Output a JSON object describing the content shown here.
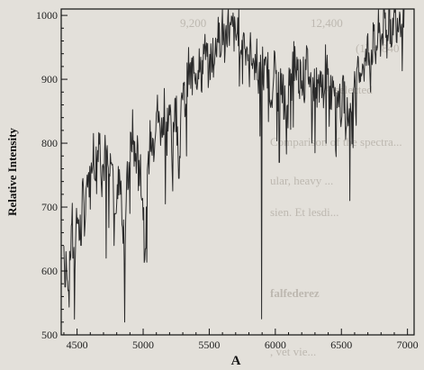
{
  "chart_data": {
    "type": "line",
    "title": "",
    "xlabel": "A",
    "ylabel": "Relative Intensity",
    "xlim": [
      4380,
      7050
    ],
    "ylim": [
      500,
      1010
    ],
    "x_ticks": [
      4500,
      5000,
      5500,
      6000,
      6500,
      7000
    ],
    "y_ticks": [
      500,
      600,
      700,
      800,
      900,
      1000
    ],
    "grid": false,
    "series": [
      {
        "color": "#2a2a2a",
        "points": [
          [
            4400,
            640
          ],
          [
            4420,
            620
          ],
          [
            4440,
            575
          ],
          [
            4460,
            690
          ],
          [
            4480,
            600
          ],
          [
            4500,
            700
          ],
          [
            4520,
            650
          ],
          [
            4540,
            720
          ],
          [
            4560,
            680
          ],
          [
            4580,
            760
          ],
          [
            4600,
            730
          ],
          [
            4620,
            800
          ],
          [
            4640,
            760
          ],
          [
            4660,
            830
          ],
          [
            4680,
            780
          ],
          [
            4700,
            760
          ],
          [
            4720,
            800
          ],
          [
            4740,
            740
          ],
          [
            4760,
            780
          ],
          [
            4780,
            720
          ],
          [
            4800,
            700
          ],
          [
            4820,
            760
          ],
          [
            4840,
            700
          ],
          [
            4860,
            640
          ],
          [
            4880,
            740
          ],
          [
            4900,
            780
          ],
          [
            4920,
            820
          ],
          [
            4940,
            770
          ],
          [
            4960,
            800
          ],
          [
            4980,
            760
          ],
          [
            5000,
            700
          ],
          [
            5020,
            640
          ],
          [
            5040,
            780
          ],
          [
            5060,
            820
          ],
          [
            5080,
            800
          ],
          [
            5100,
            860
          ],
          [
            5120,
            830
          ],
          [
            5140,
            820
          ],
          [
            5160,
            870
          ],
          [
            5180,
            830
          ],
          [
            5200,
            850
          ],
          [
            5220,
            800
          ],
          [
            5240,
            860
          ],
          [
            5260,
            840
          ],
          [
            5280,
            810
          ],
          [
            5300,
            880
          ],
          [
            5320,
            860
          ],
          [
            5340,
            920
          ],
          [
            5360,
            900
          ],
          [
            5380,
            940
          ],
          [
            5400,
            910
          ],
          [
            5420,
            930
          ],
          [
            5440,
            900
          ],
          [
            5460,
            950
          ],
          [
            5480,
            930
          ],
          [
            5500,
            910
          ],
          [
            5520,
            950
          ],
          [
            5540,
            930
          ],
          [
            5560,
            970
          ],
          [
            5580,
            960
          ],
          [
            5600,
            980
          ],
          [
            5620,
            960
          ],
          [
            5640,
            990
          ],
          [
            5660,
            970
          ],
          [
            5680,
            980
          ],
          [
            5700,
            960
          ],
          [
            5720,
            985
          ],
          [
            5740,
            950
          ],
          [
            5760,
            970
          ],
          [
            5780,
            960
          ],
          [
            5800,
            935
          ],
          [
            5820,
            950
          ],
          [
            5840,
            920
          ],
          [
            5860,
            940
          ],
          [
            5880,
            900
          ],
          [
            5900,
            930
          ],
          [
            5920,
            900
          ],
          [
            5940,
            920
          ],
          [
            5960,
            880
          ],
          [
            5980,
            910
          ],
          [
            6000,
            920
          ],
          [
            6020,
            890
          ],
          [
            6040,
            900
          ],
          [
            6060,
            880
          ],
          [
            6080,
            860
          ],
          [
            6100,
            900
          ],
          [
            6120,
            880
          ],
          [
            6140,
            940
          ],
          [
            6160,
            920
          ],
          [
            6180,
            900
          ],
          [
            6200,
            920
          ],
          [
            6220,
            890
          ],
          [
            6240,
            930
          ],
          [
            6260,
            900
          ],
          [
            6280,
            880
          ],
          [
            6300,
            900
          ],
          [
            6320,
            880
          ],
          [
            6340,
            910
          ],
          [
            6360,
            890
          ],
          [
            6380,
            920
          ],
          [
            6400,
            900
          ],
          [
            6420,
            880
          ],
          [
            6440,
            910
          ],
          [
            6460,
            880
          ],
          [
            6480,
            870
          ],
          [
            6500,
            860
          ],
          [
            6520,
            880
          ],
          [
            6540,
            850
          ],
          [
            6560,
            870
          ],
          [
            6580,
            860
          ],
          [
            6600,
            880
          ],
          [
            6620,
            900
          ],
          [
            6640,
            910
          ],
          [
            6660,
            930
          ],
          [
            6680,
            920
          ],
          [
            6700,
            950
          ],
          [
            6720,
            930
          ],
          [
            6740,
            960
          ],
          [
            6760,
            940
          ],
          [
            6780,
            975
          ],
          [
            6800,
            960
          ],
          [
            6820,
            990
          ],
          [
            6840,
            970
          ],
          [
            6860,
            995
          ],
          [
            6880,
            980
          ],
          [
            6900,
            1000
          ],
          [
            6920,
            990
          ],
          [
            6940,
            1005
          ],
          [
            6960,
            995
          ],
          [
            6980,
            1000
          ]
        ],
        "absorption_lines": [
          [
            4410,
            575
          ],
          [
            4435,
            570
          ],
          [
            4470,
            620
          ],
          [
            4530,
            640
          ],
          [
            4720,
            620
          ],
          [
            4861,
            520
          ],
          [
            4900,
            690
          ],
          [
            5015,
            635
          ],
          [
            5169,
            705
          ],
          [
            5270,
            745
          ],
          [
            5328,
            780
          ],
          [
            5895,
            525
          ],
          [
            6030,
            770
          ],
          [
            6137,
            825
          ],
          [
            6300,
            785
          ],
          [
            6385,
            800
          ],
          [
            6457,
            790
          ],
          [
            6563,
            710
          ],
          [
            6720,
            880
          ]
        ]
      }
    ]
  }
}
